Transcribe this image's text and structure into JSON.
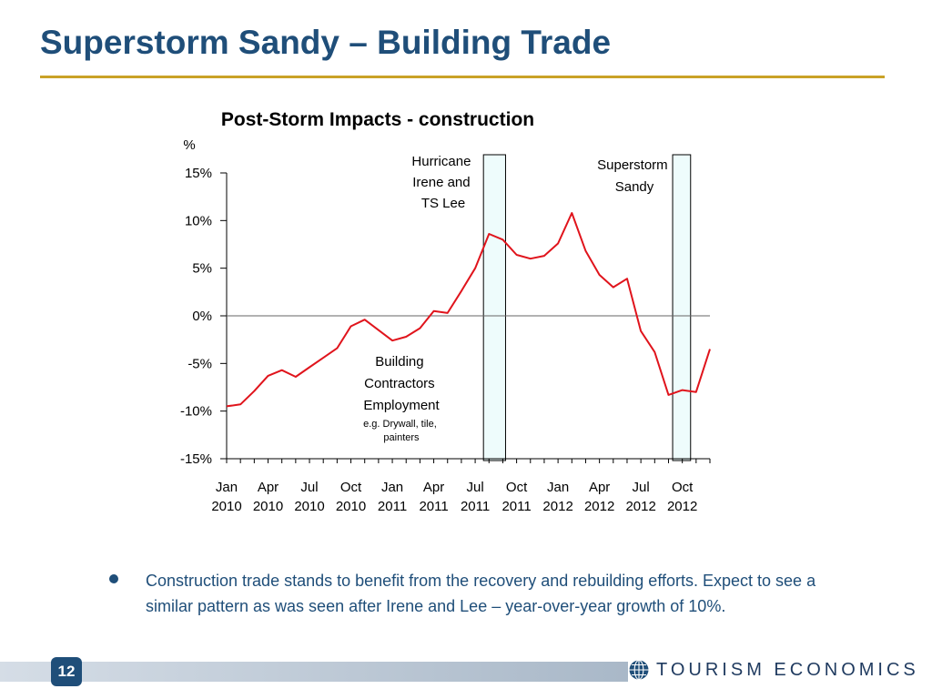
{
  "slide": {
    "title": "Superstorm Sandy – Building Trade",
    "bullet": "Construction trade stands to benefit from the recovery and rebuilding efforts. Expect to see a similar pattern as was seen after Irene and Lee – year-over-year growth of 10%.",
    "page_number": "12",
    "brand": "TOURISM ECONOMICS"
  },
  "colors": {
    "title": "#1f4e79",
    "rule": "#c9a227",
    "series": "#e0141c",
    "highlight_fill": "#eefcfc"
  },
  "chart_data": {
    "type": "line",
    "title": "Post-Storm Impacts - construction",
    "ylabel": "%",
    "xlabel": "",
    "ylim": [
      -15,
      15
    ],
    "yticks": [
      {
        "value": 15,
        "label": "15%"
      },
      {
        "value": 10,
        "label": "10%"
      },
      {
        "value": 5,
        "label": "5%"
      },
      {
        "value": 0,
        "label": "0%"
      },
      {
        "value": -5,
        "label": "-5%"
      },
      {
        "value": -10,
        "label": "-10%"
      },
      {
        "value": -15,
        "label": "-15%"
      }
    ],
    "xlabels": [
      {
        "index": 0,
        "month": "Jan",
        "year": "2010"
      },
      {
        "index": 3,
        "month": "Apr",
        "year": "2010"
      },
      {
        "index": 6,
        "month": "Jul",
        "year": "2010"
      },
      {
        "index": 9,
        "month": "Oct",
        "year": "2010"
      },
      {
        "index": 12,
        "month": "Jan",
        "year": "2011"
      },
      {
        "index": 15,
        "month": "Apr",
        "year": "2011"
      },
      {
        "index": 18,
        "month": "Jul",
        "year": "2011"
      },
      {
        "index": 21,
        "month": "Oct",
        "year": "2011"
      },
      {
        "index": 24,
        "month": "Jan",
        "year": "2012"
      },
      {
        "index": 27,
        "month": "Apr",
        "year": "2012"
      },
      {
        "index": 30,
        "month": "Jul",
        "year": "2012"
      },
      {
        "index": 33,
        "month": "Oct",
        "year": "2012"
      }
    ],
    "series": [
      {
        "values": [
          -9.5,
          -9.3,
          -7.9,
          -6.3,
          -5.7,
          -6.4,
          -5.4,
          -4.4,
          -3.4,
          -1.1,
          -0.4,
          -1.5,
          -2.6,
          -2.2,
          -1.3,
          0.5,
          0.3,
          2.6,
          5.0,
          8.6,
          8.0,
          6.4,
          6.0,
          6.3,
          7.6,
          10.8,
          6.8,
          4.3,
          3.0,
          3.9,
          -1.6,
          -3.8,
          -8.3,
          -7.8,
          -8.0,
          -3.5
        ]
      }
    ],
    "highlights": [
      {
        "label": "Hurricane Irene and TS Lee",
        "start_index": 18.6,
        "end_index": 20.2
      },
      {
        "label": "Superstorm Sandy",
        "start_index": 32.3,
        "end_index": 33.6
      }
    ],
    "annotations": [
      {
        "label": "Building Contractors Employment",
        "sublabel": "e.g. Drywall, tile, painters"
      }
    ]
  }
}
